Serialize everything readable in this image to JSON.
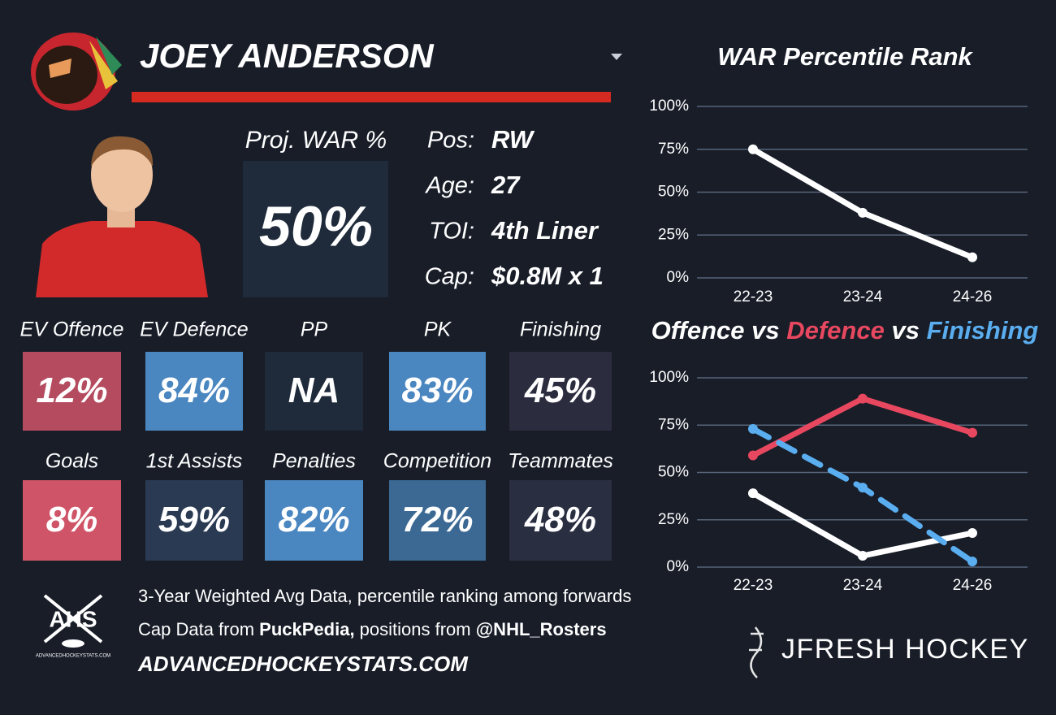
{
  "header": {
    "player_name": "JOEY ANDERSON"
  },
  "summary": {
    "proj_war_label": "Proj. WAR %",
    "proj_war_value": "50%",
    "info": [
      {
        "label": "Pos:",
        "value": "RW"
      },
      {
        "label": "Age:",
        "value": "27"
      },
      {
        "label": "TOI:",
        "value": "4th Liner"
      },
      {
        "label": "Cap:",
        "value": "$0.8M x 1"
      }
    ]
  },
  "tiles": [
    {
      "label": "EV Offence",
      "value": "12%",
      "color": "#b44b5e"
    },
    {
      "label": "EV Defence",
      "value": "84%",
      "color": "#4a86c0"
    },
    {
      "label": "PP",
      "value": "NA",
      "color": "#1f2a3a"
    },
    {
      "label": "PK",
      "value": "83%",
      "color": "#4a86c0"
    },
    {
      "label": "Finishing",
      "value": "45%",
      "color": "#2b2c3e"
    },
    {
      "label": "Goals",
      "value": "8%",
      "color": "#cf5468"
    },
    {
      "label": "1st Assists",
      "value": "59%",
      "color": "#293a52"
    },
    {
      "label": "Penalties",
      "value": "82%",
      "color": "#4a86c0"
    },
    {
      "label": "Competition",
      "value": "72%",
      "color": "#3b6993"
    },
    {
      "label": "Teammates",
      "value": "48%",
      "color": "#2a2e41"
    }
  ],
  "footer": {
    "line1": "3-Year Weighted Avg Data, percentile ranking among forwards",
    "line2": [
      "Cap Data from ",
      "PuckPedia,",
      " positions from ",
      "@NHL_Rosters"
    ],
    "website": "ADVANCEDHOCKEYSTATS.COM",
    "ahs_logo": "AHS",
    "ahs_logo_url": "ADVANCEDHOCKEYSTATS.COM",
    "brand": "JFRESH HOCKEY"
  },
  "chart_data": [
    {
      "type": "line",
      "title": "WAR Percentile Rank",
      "categories": [
        "22-23",
        "23-24",
        "24-26"
      ],
      "values": [
        75,
        38,
        12
      ],
      "color": "#ffffff",
      "ylim": [
        0,
        100
      ],
      "yticks": [
        {
          "value": 0,
          "label": "0%"
        },
        {
          "value": 25,
          "label": "25%"
        },
        {
          "value": 50,
          "label": "50%"
        },
        {
          "value": 75,
          "label": "75%"
        },
        {
          "value": 100,
          "label": "100%"
        }
      ],
      "grid": true
    },
    {
      "type": "line",
      "title_parts": [
        {
          "text": "Offence",
          "color": "#ffffff"
        },
        {
          "text": " vs ",
          "color": "#ffffff"
        },
        {
          "text": "Defence",
          "color": "#e8485f"
        },
        {
          "text": " vs ",
          "color": "#ffffff"
        },
        {
          "text": "Finishing",
          "color": "#5aaef0"
        }
      ],
      "categories": [
        "22-23",
        "23-24",
        "24-26"
      ],
      "series": [
        {
          "name": "Offence",
          "color": "#ffffff",
          "dashed": false,
          "values": [
            39,
            6,
            18
          ]
        },
        {
          "name": "Defence",
          "color": "#e8485f",
          "dashed": false,
          "values": [
            59,
            89,
            71
          ]
        },
        {
          "name": "Finishing",
          "color": "#5aaef0",
          "dashed": true,
          "values": [
            73,
            42,
            3
          ]
        }
      ],
      "ylim": [
        0,
        100
      ],
      "yticks": [
        {
          "value": 0,
          "label": "0%"
        },
        {
          "value": 25,
          "label": "25%"
        },
        {
          "value": 50,
          "label": "50%"
        },
        {
          "value": 75,
          "label": "75%"
        },
        {
          "value": 100,
          "label": "100%"
        }
      ],
      "grid": true
    }
  ]
}
